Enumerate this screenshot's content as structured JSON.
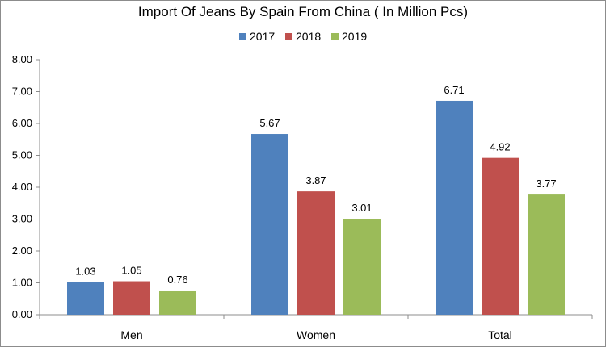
{
  "chart_data": {
    "type": "bar",
    "title": "Import Of Jeans By Spain From China ( In Million Pcs)",
    "categories": [
      "Men",
      "Women",
      "Total"
    ],
    "series": [
      {
        "name": "2017",
        "color": "#4f81bd",
        "values": [
          1.03,
          5.67,
          6.71
        ],
        "labels": [
          "1.03",
          "5.67",
          "6.71"
        ]
      },
      {
        "name": "2018",
        "color": "#c0504d",
        "values": [
          1.05,
          3.87,
          4.92
        ],
        "labels": [
          "1.05",
          "3.87",
          "4.92"
        ]
      },
      {
        "name": "2019",
        "color": "#9bbb59",
        "values": [
          0.76,
          3.01,
          3.77
        ],
        "labels": [
          "0.76",
          "3.01",
          "3.77"
        ]
      }
    ],
    "ylim": [
      0,
      8
    ],
    "yticks": [
      "0.00",
      "1.00",
      "2.00",
      "3.00",
      "4.00",
      "5.00",
      "6.00",
      "7.00",
      "8.00"
    ],
    "grid": false,
    "legend_position": "top-center",
    "xlabel": "",
    "ylabel": ""
  }
}
